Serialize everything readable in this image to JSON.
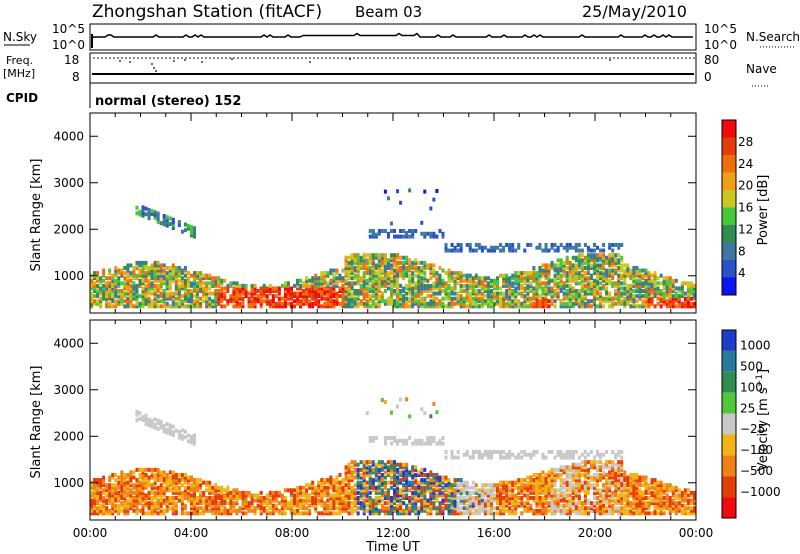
{
  "header": {
    "station_title": "Zhongshan Station (fitACF)",
    "beam": "Beam 03",
    "date": "25/May/2010"
  },
  "top_panels": {
    "nsky": {
      "label": "N.Sky",
      "ticks": [
        "10^5",
        "10^0"
      ]
    },
    "nsearch": {
      "label": "N.Search",
      "ticks": [
        "10^5",
        "10^0"
      ]
    },
    "freq": {
      "label_line1": "Freq.",
      "label_line2": "[MHz]",
      "ticks": [
        "18",
        "8"
      ]
    },
    "nave": {
      "label": "Nave",
      "ticks": [
        "80",
        "0"
      ]
    },
    "cpid": {
      "label": "CPID",
      "value": "normal (stereo) 152"
    }
  },
  "chart_data": [
    {
      "type": "heatmap",
      "name": "power",
      "ylabel": "Slant Range [km]",
      "xlabel": "",
      "yticks": [
        1000,
        2000,
        3000,
        4000
      ],
      "ylim": [
        200,
        4500
      ],
      "xlim": [
        0,
        24
      ],
      "colorbar": {
        "label": "Power [dB]",
        "ticks": [
          "4",
          "8",
          "12",
          "16",
          "20",
          "24",
          "28"
        ],
        "colors": [
          "#0a14f0",
          "#2850c8",
          "#3c78a0",
          "#328c50",
          "#46c83c",
          "#c8c81e",
          "#f0a014",
          "#f06e0a",
          "#e63c0a",
          "#f00a0a"
        ]
      },
      "bands": [
        {
          "t0": 0.0,
          "t1": 24.0,
          "r0": 300,
          "r1": 1200,
          "level": "green/orange mixed"
        },
        {
          "t0": 5.0,
          "t1": 10.0,
          "r0": 300,
          "r1": 700,
          "level": "red high power"
        },
        {
          "t0": 1.7,
          "t1": 4.2,
          "r0": 1700,
          "r1": 2500,
          "level": "blue/green"
        },
        {
          "t0": 11.0,
          "t1": 21.0,
          "r0": 1300,
          "r1": 1600,
          "level": "blue low power"
        }
      ]
    },
    {
      "type": "heatmap",
      "name": "velocity",
      "ylabel": "Slant Range [km]",
      "xlabel": "Time UT",
      "yticks": [
        1000,
        2000,
        3000,
        4000
      ],
      "ylim": [
        200,
        4500
      ],
      "xlim": [
        0,
        24
      ],
      "xticks": [
        "00:00",
        "04:00",
        "08:00",
        "12:00",
        "16:00",
        "20:00",
        "00:00"
      ],
      "colorbar": {
        "label": "Velocity [m s^-1]",
        "ticks": [
          "1000",
          "500",
          "100",
          "25",
          "−25",
          "−100",
          "−500",
          "−1000"
        ],
        "colors": [
          "#1e3cc8",
          "#2878a0",
          "#328c50",
          "#50c83c",
          "#c8c8c8",
          "#f0b414",
          "#f08214",
          "#e63c0a",
          "#f00a0a"
        ]
      }
    }
  ]
}
